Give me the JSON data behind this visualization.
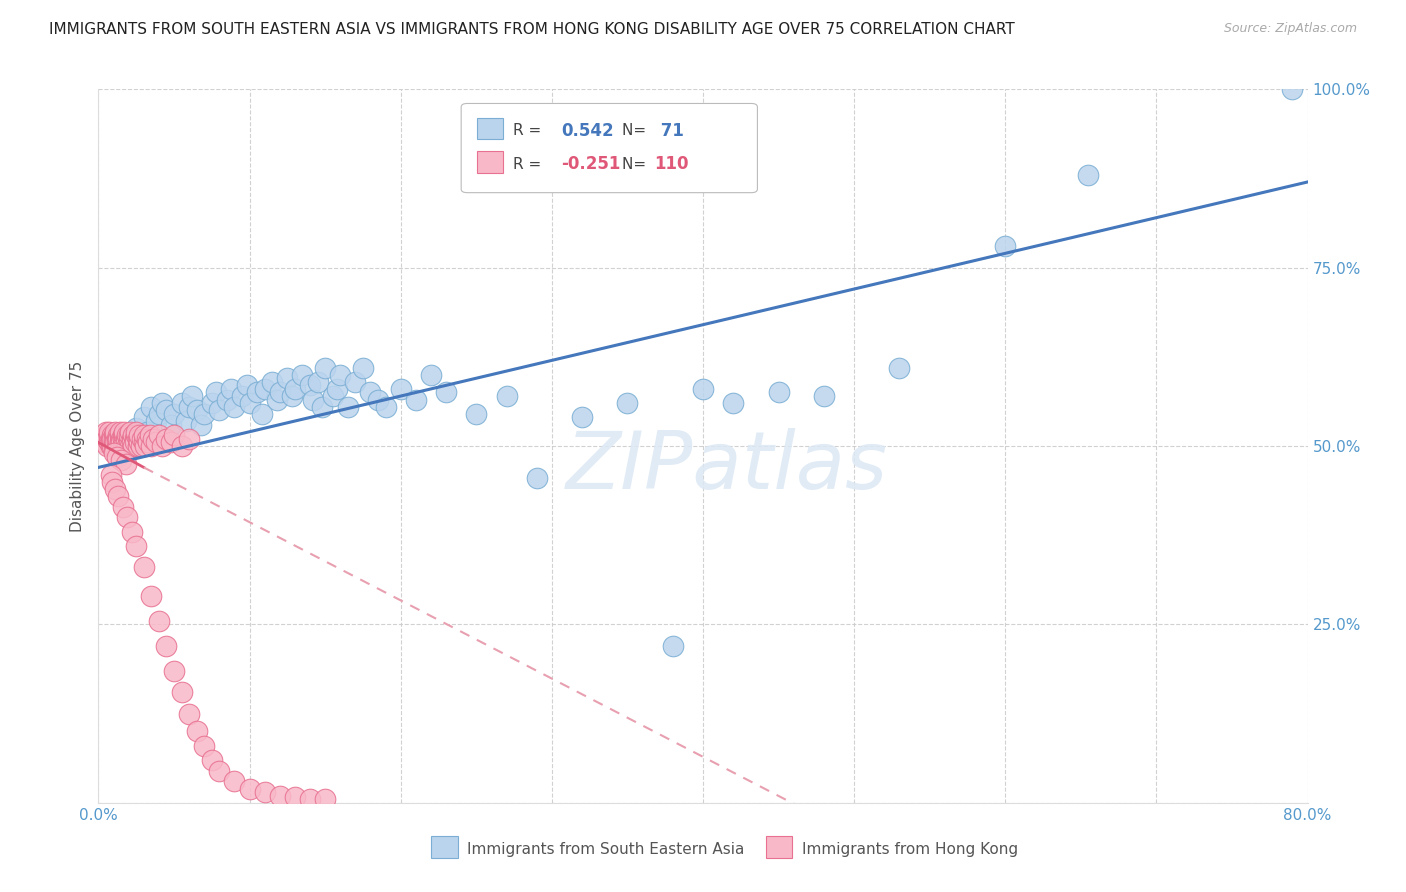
{
  "title": "IMMIGRANTS FROM SOUTH EASTERN ASIA VS IMMIGRANTS FROM HONG KONG DISABILITY AGE OVER 75 CORRELATION CHART",
  "source": "Source: ZipAtlas.com",
  "ylabel": "Disability Age Over 75",
  "legend_label_blue": "Immigrants from South Eastern Asia",
  "legend_label_pink": "Immigrants from Hong Kong",
  "R_blue": 0.542,
  "N_blue": 71,
  "R_pink": -0.251,
  "N_pink": 110,
  "xlim": [
    0.0,
    0.8
  ],
  "ylim": [
    0.0,
    1.0
  ],
  "blue_color": "#bbd4ed",
  "blue_edge_color": "#7aaed4",
  "blue_line_color": "#4477bb",
  "pink_color": "#f8b8c8",
  "pink_edge_color": "#e87090",
  "pink_line_color": "#e05878",
  "pink_dash_color": "#e8a0b0",
  "watermark_color": "#dce8f4",
  "blue_x": [
    0.018,
    0.022,
    0.025,
    0.028,
    0.03,
    0.032,
    0.035,
    0.038,
    0.04,
    0.042,
    0.045,
    0.048,
    0.05,
    0.055,
    0.058,
    0.06,
    0.062,
    0.065,
    0.068,
    0.07,
    0.075,
    0.078,
    0.08,
    0.085,
    0.088,
    0.09,
    0.095,
    0.098,
    0.1,
    0.105,
    0.108,
    0.11,
    0.115,
    0.118,
    0.12,
    0.125,
    0.128,
    0.13,
    0.135,
    0.14,
    0.142,
    0.145,
    0.148,
    0.15,
    0.155,
    0.158,
    0.16,
    0.165,
    0.17,
    0.175,
    0.18,
    0.185,
    0.19,
    0.2,
    0.21,
    0.22,
    0.23,
    0.25,
    0.27,
    0.29,
    0.32,
    0.35,
    0.38,
    0.4,
    0.42,
    0.45,
    0.48,
    0.53,
    0.6,
    0.655,
    0.79
  ],
  "blue_y": [
    0.495,
    0.51,
    0.525,
    0.505,
    0.54,
    0.52,
    0.555,
    0.535,
    0.545,
    0.56,
    0.55,
    0.53,
    0.545,
    0.56,
    0.535,
    0.555,
    0.57,
    0.55,
    0.53,
    0.545,
    0.56,
    0.575,
    0.55,
    0.565,
    0.58,
    0.555,
    0.57,
    0.585,
    0.56,
    0.575,
    0.545,
    0.58,
    0.59,
    0.565,
    0.575,
    0.595,
    0.57,
    0.58,
    0.6,
    0.585,
    0.565,
    0.59,
    0.555,
    0.61,
    0.57,
    0.58,
    0.6,
    0.555,
    0.59,
    0.61,
    0.575,
    0.565,
    0.555,
    0.58,
    0.565,
    0.6,
    0.575,
    0.545,
    0.57,
    0.455,
    0.54,
    0.56,
    0.22,
    0.58,
    0.56,
    0.575,
    0.57,
    0.61,
    0.78,
    0.88,
    1.0
  ],
  "pink_x": [
    0.003,
    0.004,
    0.005,
    0.005,
    0.006,
    0.006,
    0.007,
    0.007,
    0.007,
    0.008,
    0.008,
    0.008,
    0.009,
    0.009,
    0.009,
    0.01,
    0.01,
    0.01,
    0.01,
    0.011,
    0.011,
    0.011,
    0.012,
    0.012,
    0.012,
    0.013,
    0.013,
    0.013,
    0.014,
    0.014,
    0.014,
    0.015,
    0.015,
    0.015,
    0.016,
    0.016,
    0.016,
    0.017,
    0.017,
    0.017,
    0.018,
    0.018,
    0.018,
    0.019,
    0.019,
    0.02,
    0.02,
    0.02,
    0.021,
    0.021,
    0.022,
    0.022,
    0.023,
    0.023,
    0.024,
    0.024,
    0.025,
    0.025,
    0.026,
    0.026,
    0.027,
    0.027,
    0.028,
    0.029,
    0.03,
    0.03,
    0.031,
    0.032,
    0.033,
    0.034,
    0.035,
    0.036,
    0.038,
    0.04,
    0.042,
    0.045,
    0.048,
    0.05,
    0.055,
    0.06,
    0.01,
    0.012,
    0.015,
    0.018,
    0.008,
    0.009,
    0.011,
    0.013,
    0.016,
    0.019,
    0.022,
    0.025,
    0.03,
    0.035,
    0.04,
    0.045,
    0.05,
    0.055,
    0.06,
    0.065,
    0.07,
    0.075,
    0.08,
    0.09,
    0.1,
    0.11,
    0.12,
    0.13,
    0.14,
    0.15
  ],
  "pink_y": [
    0.51,
    0.505,
    0.515,
    0.52,
    0.5,
    0.51,
    0.505,
    0.515,
    0.52,
    0.5,
    0.51,
    0.505,
    0.515,
    0.5,
    0.51,
    0.515,
    0.505,
    0.5,
    0.51,
    0.515,
    0.505,
    0.52,
    0.5,
    0.51,
    0.505,
    0.515,
    0.5,
    0.51,
    0.505,
    0.515,
    0.52,
    0.5,
    0.51,
    0.505,
    0.515,
    0.5,
    0.51,
    0.505,
    0.515,
    0.52,
    0.5,
    0.51,
    0.505,
    0.515,
    0.5,
    0.51,
    0.505,
    0.515,
    0.52,
    0.5,
    0.51,
    0.505,
    0.515,
    0.5,
    0.51,
    0.505,
    0.515,
    0.52,
    0.5,
    0.51,
    0.505,
    0.515,
    0.5,
    0.51,
    0.505,
    0.515,
    0.5,
    0.51,
    0.505,
    0.515,
    0.5,
    0.51,
    0.505,
    0.515,
    0.5,
    0.51,
    0.505,
    0.515,
    0.5,
    0.51,
    0.49,
    0.485,
    0.48,
    0.475,
    0.46,
    0.45,
    0.44,
    0.43,
    0.415,
    0.4,
    0.38,
    0.36,
    0.33,
    0.29,
    0.255,
    0.22,
    0.185,
    0.155,
    0.125,
    0.1,
    0.08,
    0.06,
    0.045,
    0.03,
    0.02,
    0.015,
    0.01,
    0.008,
    0.006,
    0.005
  ]
}
